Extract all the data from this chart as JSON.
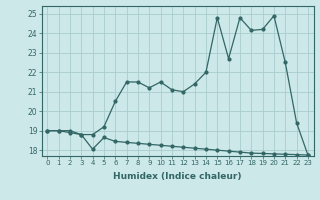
{
  "xlabel": "Humidex (Indice chaleur)",
  "ylabel": "",
  "bg_color": "#cce8e8",
  "grid_color": "#aacccc",
  "line_color": "#336666",
  "xlim": [
    -0.5,
    23.5
  ],
  "ylim": [
    17.7,
    25.4
  ],
  "yticks": [
    18,
    19,
    20,
    21,
    22,
    23,
    24,
    25
  ],
  "xticks": [
    0,
    1,
    2,
    3,
    4,
    5,
    6,
    7,
    8,
    9,
    10,
    11,
    12,
    13,
    14,
    15,
    16,
    17,
    18,
    19,
    20,
    21,
    22,
    23
  ],
  "series1_x": [
    0,
    1,
    2,
    3,
    4,
    5,
    6,
    7,
    8,
    9,
    10,
    11,
    12,
    13,
    14,
    15,
    16,
    17,
    18,
    19,
    20,
    21,
    22,
    23
  ],
  "series1_y": [
    19.0,
    19.0,
    18.9,
    18.8,
    18.05,
    18.65,
    18.45,
    18.4,
    18.35,
    18.3,
    18.25,
    18.2,
    18.15,
    18.1,
    18.05,
    18.0,
    17.95,
    17.9,
    17.85,
    17.83,
    17.81,
    17.79,
    17.77,
    17.75
  ],
  "series2_x": [
    0,
    1,
    2,
    3,
    4,
    5,
    6,
    7,
    8,
    9,
    10,
    11,
    12,
    13,
    14,
    15,
    16,
    17,
    18,
    19,
    20,
    21,
    22,
    23
  ],
  "series2_y": [
    19.0,
    19.0,
    19.0,
    18.8,
    18.8,
    19.2,
    20.5,
    21.5,
    21.5,
    21.2,
    21.5,
    21.1,
    21.0,
    21.4,
    22.0,
    24.8,
    22.7,
    24.8,
    24.15,
    24.2,
    24.9,
    22.5,
    19.4,
    17.75
  ]
}
